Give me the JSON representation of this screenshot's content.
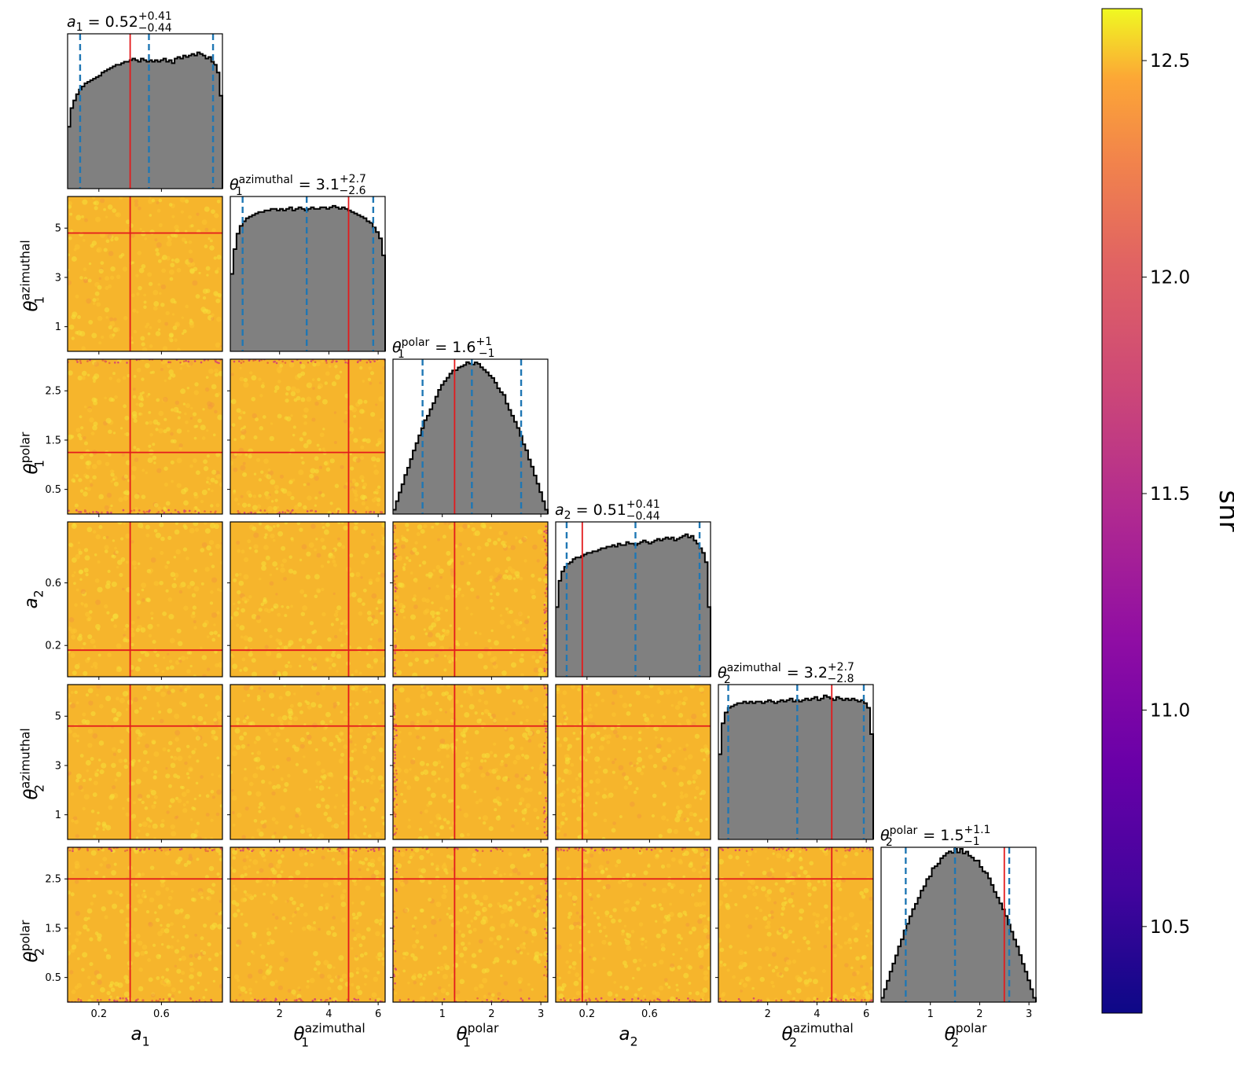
{
  "chart_data": {
    "type": "corner",
    "description_kind": "corner plot: 1D marginal histograms on diagonal, 2D scatter colored by snr below diagonal",
    "parameters": [
      {
        "key": "a1",
        "symbol": "a",
        "sub": "1",
        "sup": "",
        "range": [
          0,
          0.99
        ],
        "ticks": [
          0.2,
          0.6
        ],
        "tick_labels": [
          "0.2",
          "0.6"
        ],
        "truth": 0.4,
        "median": 0.52,
        "plus": "+0.41",
        "minus": "−0.44",
        "median_label": "0.52",
        "hist": [
          0.4,
          0.52,
          0.57,
          0.61,
          0.64,
          0.66,
          0.68,
          0.69,
          0.7,
          0.71,
          0.72,
          0.73,
          0.75,
          0.76,
          0.77,
          0.78,
          0.79,
          0.8,
          0.8,
          0.81,
          0.82,
          0.82,
          0.83,
          0.84,
          0.83,
          0.82,
          0.84,
          0.83,
          0.82,
          0.83,
          0.82,
          0.83,
          0.82,
          0.83,
          0.84,
          0.82,
          0.83,
          0.81,
          0.84,
          0.85,
          0.84,
          0.86,
          0.85,
          0.86,
          0.87,
          0.86,
          0.88,
          0.87,
          0.86,
          0.84,
          0.85,
          0.82,
          0.8,
          0.75,
          0.6
        ]
      },
      {
        "key": "th1a",
        "symbol": "θ",
        "sub": "1",
        "sup": "azimuthal",
        "range": [
          0,
          6.283
        ],
        "ticks": [
          1,
          3,
          5
        ],
        "tick_labels": [
          "1",
          "3",
          "5"
        ],
        "xticks": [
          2,
          4,
          6
        ],
        "xtick_labels": [
          "2",
          "4",
          "6"
        ],
        "truth": 4.8,
        "median": 3.1,
        "plus": "+2.7",
        "minus": "−2.6",
        "median_label": "3.1",
        "hist": [
          0.5,
          0.66,
          0.76,
          0.81,
          0.84,
          0.86,
          0.87,
          0.88,
          0.89,
          0.9,
          0.9,
          0.91,
          0.91,
          0.92,
          0.92,
          0.91,
          0.92,
          0.91,
          0.92,
          0.93,
          0.91,
          0.92,
          0.93,
          0.92,
          0.91,
          0.92,
          0.93,
          0.92,
          0.92,
          0.93,
          0.93,
          0.92,
          0.93,
          0.94,
          0.93,
          0.92,
          0.93,
          0.92,
          0.91,
          0.9,
          0.89,
          0.88,
          0.87,
          0.86,
          0.84,
          0.83,
          0.8,
          0.77,
          0.73,
          0.62
        ]
      },
      {
        "key": "th1p",
        "symbol": "θ",
        "sub": "1",
        "sup": "polar",
        "range": [
          0,
          3.1416
        ],
        "ticks": [
          0.5,
          1.5,
          2.5
        ],
        "tick_labels": [
          "0.5",
          "1.5",
          "2.5"
        ],
        "xticks": [
          1,
          2,
          3
        ],
        "xtick_labels": [
          "1",
          "2",
          "3"
        ],
        "truth": 1.25,
        "median": 1.6,
        "plus": "+1",
        "minus": "−1",
        "median_label": "1.6",
        "hist_shape": "sine"
      },
      {
        "key": "a2",
        "symbol": "a",
        "sub": "2",
        "sup": "",
        "range": [
          0,
          0.99
        ],
        "ticks": [
          0.2,
          0.6
        ],
        "tick_labels": [
          "0.2",
          "0.6"
        ],
        "truth": 0.17,
        "median": 0.51,
        "plus": "+0.41",
        "minus": "−0.44",
        "median_label": "0.51",
        "hist": [
          0.45,
          0.62,
          0.68,
          0.71,
          0.73,
          0.74,
          0.76,
          0.77,
          0.77,
          0.78,
          0.79,
          0.8,
          0.8,
          0.81,
          0.81,
          0.82,
          0.83,
          0.83,
          0.84,
          0.84,
          0.85,
          0.84,
          0.86,
          0.85,
          0.85,
          0.87,
          0.86,
          0.86,
          0.85,
          0.86,
          0.87,
          0.88,
          0.87,
          0.86,
          0.87,
          0.88,
          0.89,
          0.88,
          0.89,
          0.9,
          0.89,
          0.9,
          0.88,
          0.89,
          0.9,
          0.91,
          0.92,
          0.9,
          0.91,
          0.88,
          0.86,
          0.83,
          0.8,
          0.74,
          0.45
        ]
      },
      {
        "key": "th2a",
        "symbol": "θ",
        "sub": "2",
        "sup": "azimuthal",
        "range": [
          0,
          6.283
        ],
        "ticks": [
          1,
          3,
          5
        ],
        "tick_labels": [
          "1",
          "3",
          "5"
        ],
        "xticks": [
          2,
          4,
          6
        ],
        "xtick_labels": [
          "2",
          "4",
          "6"
        ],
        "truth": 4.6,
        "median": 3.2,
        "plus": "+2.7",
        "minus": "−2.8",
        "median_label": "3.2",
        "hist": [
          0.55,
          0.75,
          0.82,
          0.85,
          0.86,
          0.87,
          0.88,
          0.88,
          0.89,
          0.88,
          0.89,
          0.88,
          0.89,
          0.89,
          0.88,
          0.89,
          0.9,
          0.89,
          0.88,
          0.89,
          0.9,
          0.89,
          0.9,
          0.91,
          0.89,
          0.9,
          0.89,
          0.9,
          0.91,
          0.9,
          0.91,
          0.92,
          0.9,
          0.91,
          0.93,
          0.92,
          0.91,
          0.9,
          0.92,
          0.91,
          0.9,
          0.91,
          0.9,
          0.91,
          0.9,
          0.89,
          0.9,
          0.88,
          0.85,
          0.68
        ]
      },
      {
        "key": "th2p",
        "symbol": "θ",
        "sub": "2",
        "sup": "polar",
        "range": [
          0,
          3.1416
        ],
        "ticks": [
          0.5,
          1.5,
          2.5
        ],
        "tick_labels": [
          "0.5",
          "1.5",
          "2.5"
        ],
        "xticks": [
          1,
          2,
          3
        ],
        "xtick_labels": [
          "1",
          "2",
          "3"
        ],
        "truth": 2.5,
        "median": 1.5,
        "plus": "+1.1",
        "minus": "−1",
        "median_label": "1.5",
        "hist_shape": "sine"
      }
    ],
    "colorbar": {
      "label": "snr",
      "range": [
        10.3,
        12.62
      ],
      "ticks": [
        10.5,
        11.0,
        11.5,
        12.0,
        12.5
      ],
      "tick_labels": [
        "10.5",
        "11.0",
        "11.5",
        "12.0",
        "12.5"
      ],
      "colormap": "plasma"
    },
    "colors": {
      "hist_fill": "#808080",
      "hist_edge": "#000000",
      "truth_line": "#e31a1c",
      "quantile_line": "#1f77b4",
      "scatter_base": "#f6b52c",
      "scatter_high": "#f5e03a",
      "scatter_low": "#d9506a"
    },
    "grid": false,
    "legend": "none"
  }
}
